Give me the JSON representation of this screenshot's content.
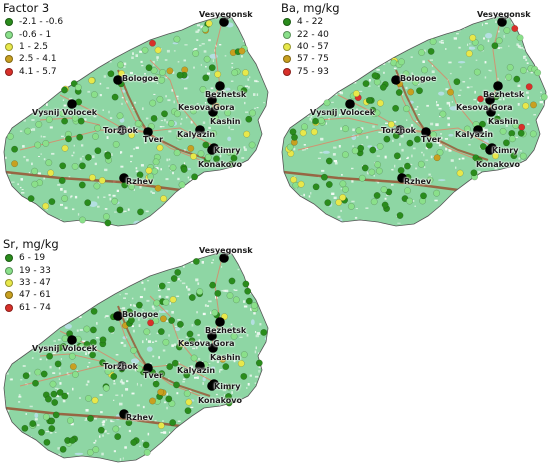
{
  "colors": {
    "land": "#8ed6a4",
    "land_texture": "#ffffff",
    "border": "#555555",
    "road": "#d98a6a",
    "railway": "#9a4a2a",
    "river": "#b8e0e8",
    "town_marker": "#000000"
  },
  "panels": [
    {
      "legend_title": "Factor 3",
      "legend": [
        {
          "label": "-2.1 - -0.6",
          "color": "#2a8c1c"
        },
        {
          "label": "-0.6 - 1",
          "color": "#8ae08a"
        },
        {
          "label": "1 - 2.5",
          "color": "#e8e84a"
        },
        {
          "label": "2.5 - 4.1",
          "color": "#c8a020"
        },
        {
          "label": "4.1 - 5.7",
          "color": "#d8302a"
        }
      ]
    },
    {
      "legend_title": "Ba, mg/kg",
      "legend": [
        {
          "label": "4 - 22",
          "color": "#2a8c1c"
        },
        {
          "label": "22 - 40",
          "color": "#8ae08a"
        },
        {
          "label": "40 - 57",
          "color": "#e8e84a"
        },
        {
          "label": "57 - 75",
          "color": "#c8a020"
        },
        {
          "label": "75 - 93",
          "color": "#d8302a"
        }
      ]
    },
    {
      "legend_title": "Sr, mg/kg",
      "legend": [
        {
          "label": "6 - 19",
          "color": "#2a8c1c"
        },
        {
          "label": "19 - 33",
          "color": "#8ae08a"
        },
        {
          "label": "33 - 47",
          "color": "#e8e84a"
        },
        {
          "label": "47 - 61",
          "color": "#c8a020"
        },
        {
          "label": "61 - 74",
          "color": "#d8302a"
        }
      ]
    }
  ],
  "cities": [
    "Vesyegonsk",
    "Bologoe",
    "Bezhetsk",
    "Kesova Gora",
    "Kashin",
    "Vysnij Volocek",
    "Torzhok",
    "Tver",
    "Kalyazin",
    "Kimry",
    "Konakovo",
    "Rzhev"
  ]
}
